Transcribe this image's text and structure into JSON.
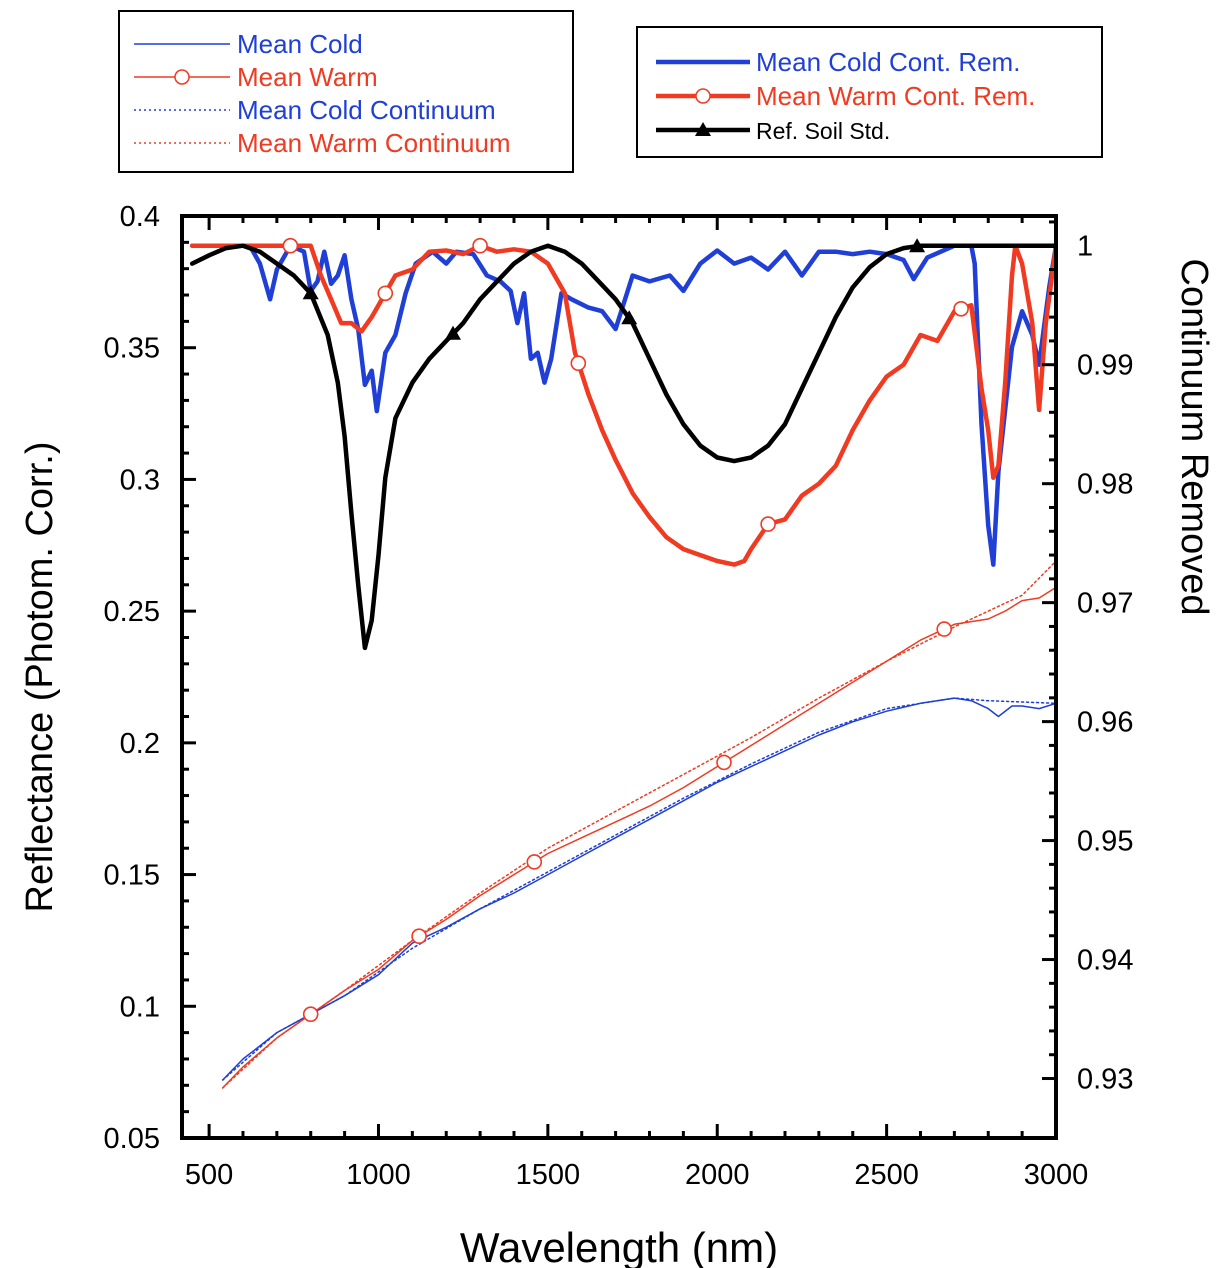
{
  "chart_data": {
    "type": "line",
    "title": "",
    "xlabel": "Wavelength (nm)",
    "ylabel": "Reflectance (Photom. Corr.)",
    "y2label": "Continuum Removed",
    "xlim": [
      420,
      3000
    ],
    "ylim": [
      0.05,
      0.4
    ],
    "y2lim": [
      0.925,
      1.0025
    ],
    "x_ticks": [
      500,
      1000,
      1500,
      2000,
      2500,
      3000
    ],
    "x_tick_labels": [
      "500",
      "1000",
      "1500",
      "2000",
      "2500",
      "3000"
    ],
    "y_ticks": [
      0.05,
      0.1,
      0.15,
      0.2,
      0.25,
      0.3,
      0.35,
      0.4
    ],
    "y_tick_labels": [
      "0.05",
      "0.1",
      "0.15",
      "0.2",
      "0.25",
      "0.3",
      "0.35",
      "0.4"
    ],
    "y2_ticks": [
      0.93,
      0.94,
      0.95,
      0.96,
      0.97,
      0.98,
      0.99,
      1.0
    ],
    "y2_tick_labels": [
      "0.93",
      "0.94",
      "0.95",
      "0.96",
      "0.97",
      "0.98",
      "0.99",
      "1"
    ],
    "grid": false,
    "legends": [
      {
        "placement": "top-left",
        "entries": [
          "Mean Cold",
          "Mean Warm",
          "Mean Cold Continuum",
          "Mean Warm Continuum"
        ]
      },
      {
        "placement": "top-right",
        "entries": [
          "Mean Cold Cont. Rem.",
          "Mean Warm Cont. Rem.",
          "Ref. Soil Std."
        ]
      }
    ],
    "series": [
      {
        "name": "Mean Cold",
        "axis": "left",
        "color": "#1f3fd6",
        "style": "thin-solid",
        "marker": "none",
        "points": [
          [
            540,
            0.072
          ],
          [
            600,
            0.08
          ],
          [
            700,
            0.09
          ],
          [
            800,
            0.097
          ],
          [
            900,
            0.104
          ],
          [
            1000,
            0.112
          ],
          [
            1100,
            0.124
          ],
          [
            1200,
            0.13
          ],
          [
            1300,
            0.137
          ],
          [
            1400,
            0.143
          ],
          [
            1500,
            0.15
          ],
          [
            1600,
            0.157
          ],
          [
            1700,
            0.164
          ],
          [
            1800,
            0.171
          ],
          [
            1900,
            0.178
          ],
          [
            2000,
            0.185
          ],
          [
            2100,
            0.191
          ],
          [
            2200,
            0.197
          ],
          [
            2300,
            0.203
          ],
          [
            2400,
            0.208
          ],
          [
            2500,
            0.212
          ],
          [
            2600,
            0.215
          ],
          [
            2700,
            0.217
          ],
          [
            2750,
            0.216
          ],
          [
            2800,
            0.213
          ],
          [
            2830,
            0.21
          ],
          [
            2870,
            0.214
          ],
          [
            2900,
            0.214
          ],
          [
            2950,
            0.213
          ],
          [
            3000,
            0.215
          ]
        ]
      },
      {
        "name": "Mean Warm",
        "axis": "left",
        "color": "#f03a22",
        "style": "thin-solid",
        "marker": "open-circle",
        "points": [
          [
            540,
            0.069
          ],
          [
            600,
            0.077
          ],
          [
            700,
            0.088
          ],
          [
            800,
            0.097
          ],
          [
            900,
            0.106
          ],
          [
            1000,
            0.114
          ],
          [
            1100,
            0.125
          ],
          [
            1200,
            0.133
          ],
          [
            1300,
            0.142
          ],
          [
            1400,
            0.15
          ],
          [
            1500,
            0.158
          ],
          [
            1600,
            0.164
          ],
          [
            1700,
            0.17
          ],
          [
            1800,
            0.176
          ],
          [
            1900,
            0.183
          ],
          [
            2000,
            0.191
          ],
          [
            2100,
            0.199
          ],
          [
            2200,
            0.207
          ],
          [
            2300,
            0.215
          ],
          [
            2400,
            0.223
          ],
          [
            2500,
            0.231
          ],
          [
            2600,
            0.239
          ],
          [
            2700,
            0.245
          ],
          [
            2800,
            0.247
          ],
          [
            2850,
            0.25
          ],
          [
            2900,
            0.254
          ],
          [
            2950,
            0.255
          ],
          [
            3000,
            0.259
          ]
        ],
        "markers_x": [
          800,
          1120,
          1460,
          2020,
          2670
        ]
      },
      {
        "name": "Mean Cold Continuum",
        "axis": "left",
        "color": "#1f3fd6",
        "style": "dotted",
        "marker": "none",
        "points": [
          [
            540,
            0.072
          ],
          [
            700,
            0.09
          ],
          [
            900,
            0.104
          ],
          [
            1100,
            0.122
          ],
          [
            1300,
            0.137
          ],
          [
            1500,
            0.151
          ],
          [
            1700,
            0.165
          ],
          [
            1900,
            0.179
          ],
          [
            2100,
            0.192
          ],
          [
            2300,
            0.204
          ],
          [
            2500,
            0.213
          ],
          [
            2700,
            0.217
          ],
          [
            2800,
            0.216
          ],
          [
            3000,
            0.215
          ]
        ]
      },
      {
        "name": "Mean Warm Continuum",
        "axis": "left",
        "color": "#f03a22",
        "style": "dotted",
        "marker": "none",
        "points": [
          [
            540,
            0.069
          ],
          [
            700,
            0.088
          ],
          [
            900,
            0.106
          ],
          [
            1100,
            0.125
          ],
          [
            1300,
            0.143
          ],
          [
            1500,
            0.16
          ],
          [
            1700,
            0.174
          ],
          [
            1900,
            0.188
          ],
          [
            2100,
            0.202
          ],
          [
            2300,
            0.217
          ],
          [
            2500,
            0.231
          ],
          [
            2700,
            0.244
          ],
          [
            2900,
            0.256
          ],
          [
            3000,
            0.269
          ]
        ]
      },
      {
        "name": "Mean Cold Cont. Rem.",
        "axis": "right",
        "color": "#1f3fd6",
        "style": "thick-solid",
        "marker": "none",
        "points": [
          [
            450,
            1.0
          ],
          [
            620,
            1.0
          ],
          [
            650,
            0.9985
          ],
          [
            680,
            0.9955
          ],
          [
            700,
            0.998
          ],
          [
            740,
            1.0
          ],
          [
            780,
            0.9995
          ],
          [
            800,
            0.9962
          ],
          [
            820,
            0.997
          ],
          [
            840,
            0.9995
          ],
          [
            860,
            0.9968
          ],
          [
            880,
            0.9975
          ],
          [
            900,
            0.9992
          ],
          [
            920,
            0.9955
          ],
          [
            940,
            0.993
          ],
          [
            960,
            0.9883
          ],
          [
            980,
            0.9895
          ],
          [
            995,
            0.9861
          ],
          [
            1020,
            0.991
          ],
          [
            1050,
            0.9925
          ],
          [
            1080,
            0.996
          ],
          [
            1110,
            0.9985
          ],
          [
            1160,
            0.9995
          ],
          [
            1200,
            0.9985
          ],
          [
            1230,
            0.9995
          ],
          [
            1280,
            0.9993
          ],
          [
            1320,
            0.9975
          ],
          [
            1360,
            0.997
          ],
          [
            1390,
            0.9962
          ],
          [
            1410,
            0.9935
          ],
          [
            1430,
            0.996
          ],
          [
            1450,
            0.9905
          ],
          [
            1470,
            0.991
          ],
          [
            1490,
            0.9885
          ],
          [
            1510,
            0.9905
          ],
          [
            1540,
            0.996
          ],
          [
            1570,
            0.9955
          ],
          [
            1620,
            0.9948
          ],
          [
            1660,
            0.9945
          ],
          [
            1700,
            0.993
          ],
          [
            1750,
            0.9975
          ],
          [
            1800,
            0.997
          ],
          [
            1860,
            0.9975
          ],
          [
            1900,
            0.9962
          ],
          [
            1950,
            0.9985
          ],
          [
            2000,
            0.9996
          ],
          [
            2050,
            0.9985
          ],
          [
            2100,
            0.999
          ],
          [
            2150,
            0.998
          ],
          [
            2200,
            0.9995
          ],
          [
            2250,
            0.9975
          ],
          [
            2300,
            0.9995
          ],
          [
            2350,
            0.9995
          ],
          [
            2400,
            0.9993
          ],
          [
            2450,
            0.9995
          ],
          [
            2500,
            0.9993
          ],
          [
            2550,
            0.9988
          ],
          [
            2580,
            0.9972
          ],
          [
            2620,
            0.999
          ],
          [
            2700,
            1.0
          ],
          [
            2750,
            1.0
          ],
          [
            2760,
            0.9985
          ],
          [
            2780,
            0.985
          ],
          [
            2800,
            0.9765
          ],
          [
            2815,
            0.9732
          ],
          [
            2830,
            0.981
          ],
          [
            2870,
            0.9915
          ],
          [
            2900,
            0.9945
          ],
          [
            2930,
            0.9925
          ],
          [
            2950,
            0.99
          ],
          [
            2980,
            0.9965
          ],
          [
            3000,
            1.0
          ]
        ]
      },
      {
        "name": "Mean Warm Cont. Rem.",
        "axis": "right",
        "color": "#f03a22",
        "style": "thick-solid",
        "marker": "open-circle",
        "points": [
          [
            450,
            1.0
          ],
          [
            700,
            1.0
          ],
          [
            800,
            1.0
          ],
          [
            830,
            0.9975
          ],
          [
            860,
            0.9955
          ],
          [
            890,
            0.9935
          ],
          [
            920,
            0.9935
          ],
          [
            950,
            0.9928
          ],
          [
            980,
            0.994
          ],
          [
            1000,
            0.995
          ],
          [
            1050,
            0.9975
          ],
          [
            1100,
            0.998
          ],
          [
            1150,
            0.9995
          ],
          [
            1200,
            0.9996
          ],
          [
            1250,
            0.9993
          ],
          [
            1300,
            1.0
          ],
          [
            1350,
            0.9995
          ],
          [
            1400,
            0.9997
          ],
          [
            1450,
            0.9995
          ],
          [
            1500,
            0.9985
          ],
          [
            1550,
            0.996
          ],
          [
            1580,
            0.991
          ],
          [
            1620,
            0.9875
          ],
          [
            1660,
            0.9845
          ],
          [
            1700,
            0.982
          ],
          [
            1750,
            0.9792
          ],
          [
            1800,
            0.9772
          ],
          [
            1850,
            0.9755
          ],
          [
            1900,
            0.9745
          ],
          [
            1950,
            0.974
          ],
          [
            2000,
            0.9735
          ],
          [
            2050,
            0.9732
          ],
          [
            2080,
            0.9735
          ],
          [
            2100,
            0.9745
          ],
          [
            2150,
            0.9766
          ],
          [
            2200,
            0.977
          ],
          [
            2250,
            0.979
          ],
          [
            2300,
            0.98
          ],
          [
            2350,
            0.9815
          ],
          [
            2400,
            0.9845
          ],
          [
            2450,
            0.987
          ],
          [
            2500,
            0.989
          ],
          [
            2550,
            0.99
          ],
          [
            2600,
            0.9925
          ],
          [
            2650,
            0.992
          ],
          [
            2700,
            0.9945
          ],
          [
            2750,
            0.995
          ],
          [
            2780,
            0.988
          ],
          [
            2800,
            0.9845
          ],
          [
            2815,
            0.9805
          ],
          [
            2830,
            0.9815
          ],
          [
            2850,
            0.9885
          ],
          [
            2870,
            0.9975
          ],
          [
            2880,
            1.0
          ],
          [
            2900,
            0.9985
          ],
          [
            2930,
            0.9935
          ],
          [
            2950,
            0.9862
          ],
          [
            2970,
            0.9935
          ],
          [
            3000,
            1.0
          ]
        ],
        "markers_x": [
          740,
          1020,
          1300,
          1590,
          2150,
          2720
        ]
      },
      {
        "name": "Ref. Soil Std.",
        "axis": "right",
        "color": "#000000",
        "style": "thick-solid",
        "marker": "filled-triangle",
        "points": [
          [
            450,
            0.9985
          ],
          [
            500,
            0.9992
          ],
          [
            550,
            0.9998
          ],
          [
            600,
            1.0
          ],
          [
            650,
            0.9995
          ],
          [
            700,
            0.9985
          ],
          [
            750,
            0.9975
          ],
          [
            800,
            0.996
          ],
          [
            850,
            0.9925
          ],
          [
            880,
            0.9885
          ],
          [
            900,
            0.984
          ],
          [
            920,
            0.9775
          ],
          [
            940,
            0.9715
          ],
          [
            960,
            0.9662
          ],
          [
            980,
            0.9685
          ],
          [
            1000,
            0.974
          ],
          [
            1020,
            0.9805
          ],
          [
            1050,
            0.9855
          ],
          [
            1100,
            0.9885
          ],
          [
            1150,
            0.9905
          ],
          [
            1200,
            0.992
          ],
          [
            1250,
            0.9935
          ],
          [
            1300,
            0.9955
          ],
          [
            1350,
            0.997
          ],
          [
            1400,
            0.9985
          ],
          [
            1450,
            0.9995
          ],
          [
            1500,
            1.0
          ],
          [
            1550,
            0.9995
          ],
          [
            1600,
            0.9985
          ],
          [
            1650,
            0.997
          ],
          [
            1700,
            0.9955
          ],
          [
            1750,
            0.9935
          ],
          [
            1800,
            0.9905
          ],
          [
            1850,
            0.9875
          ],
          [
            1900,
            0.985
          ],
          [
            1950,
            0.9832
          ],
          [
            2000,
            0.9822
          ],
          [
            2050,
            0.9819
          ],
          [
            2100,
            0.9822
          ],
          [
            2150,
            0.9832
          ],
          [
            2200,
            0.985
          ],
          [
            2250,
            0.988
          ],
          [
            2300,
            0.991
          ],
          [
            2350,
            0.994
          ],
          [
            2400,
            0.9965
          ],
          [
            2450,
            0.9982
          ],
          [
            2500,
            0.9993
          ],
          [
            2550,
            0.9998
          ],
          [
            2600,
            1.0
          ],
          [
            2700,
            1.0
          ],
          [
            2800,
            1.0
          ],
          [
            2900,
            1.0
          ],
          [
            3000,
            1.0
          ]
        ],
        "markers_x": [
          800,
          1220,
          1740,
          2590
        ]
      }
    ]
  }
}
